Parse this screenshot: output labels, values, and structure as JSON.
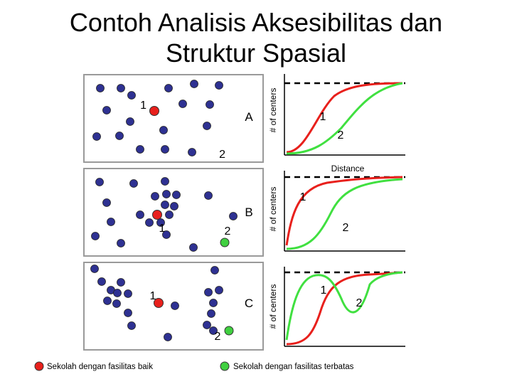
{
  "title": {
    "line1": "Contoh Analisis Aksesibilitas dan",
    "line2": "Struktur Spasial"
  },
  "panels": [
    {
      "id": "A",
      "letter": "A",
      "good_label": "1",
      "limited_label": "2",
      "axis_ylabel": "# of centers",
      "axis_xlabel": "Distance",
      "curve_label_1": "1",
      "curve_label_2": "2"
    },
    {
      "id": "B",
      "letter": "B",
      "good_label": "1",
      "limited_label": "2",
      "axis_ylabel": "# of centers",
      "axis_xlabel": "",
      "curve_label_1": "1",
      "curve_label_2": "2"
    },
    {
      "id": "C",
      "letter": "C",
      "good_label": "1",
      "limited_label": "2",
      "axis_ylabel": "# of centers",
      "axis_xlabel": "",
      "curve_label_1": "1",
      "curve_label_2": "2"
    }
  ],
  "legend": {
    "good": {
      "label": "Sekolah dengan fasilitas baik",
      "color": "#e8201c"
    },
    "limited": {
      "label": "Sekolah dengan fasilitas terbatas",
      "color": "#40d040"
    }
  },
  "colors": {
    "center_dot": "#2e3192",
    "curve_good": "#e8201c",
    "curve_limited": "#40e040",
    "dashed": "#000000"
  }
}
